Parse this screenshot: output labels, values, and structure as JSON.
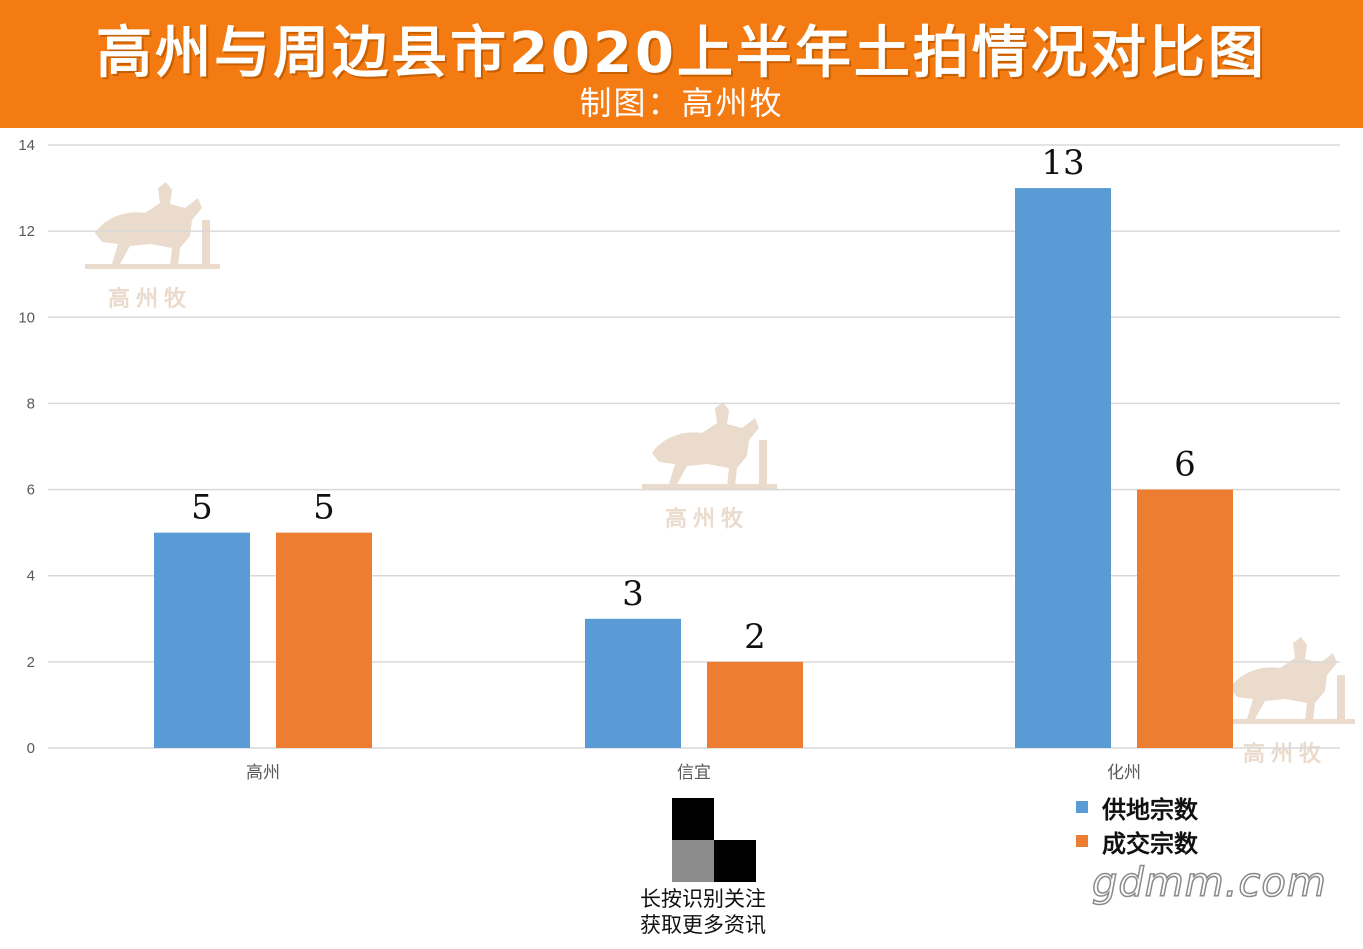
{
  "header": {
    "title": "高州与周边县市2020上半年土拍情况对比图",
    "subtitle": "制图：高州牧"
  },
  "watermark": {
    "text": "高州牧",
    "icon": "horse-rider-icon",
    "color": "#e8d8c8"
  },
  "qr": {
    "caption_line1": "长按识别关注",
    "caption_line2": "获取更多资讯"
  },
  "site_mark": "gdmm.com",
  "colors": {
    "header": "#f47a12",
    "series_supply": "#5b9bd5",
    "series_deal": "#ed7d31",
    "grid": "#d9d9d9",
    "axis_text": "#595959"
  },
  "chart_data": {
    "type": "bar",
    "title": "高州与周边县市2020上半年土拍情况对比图",
    "subtitle": "制图：高州牧",
    "categories": [
      "高州",
      "信宜",
      "化州"
    ],
    "series": [
      {
        "name": "供地宗数",
        "values": [
          5,
          3,
          13
        ],
        "color": "#5b9bd5"
      },
      {
        "name": "成交宗数",
        "values": [
          5,
          2,
          6
        ],
        "color": "#ed7d31"
      }
    ],
    "ylim": [
      0,
      14
    ],
    "yticks": [
      0,
      2,
      4,
      6,
      8,
      10,
      12,
      14
    ],
    "grid": true,
    "data_labels": true,
    "legend_position": "bottom-right"
  }
}
